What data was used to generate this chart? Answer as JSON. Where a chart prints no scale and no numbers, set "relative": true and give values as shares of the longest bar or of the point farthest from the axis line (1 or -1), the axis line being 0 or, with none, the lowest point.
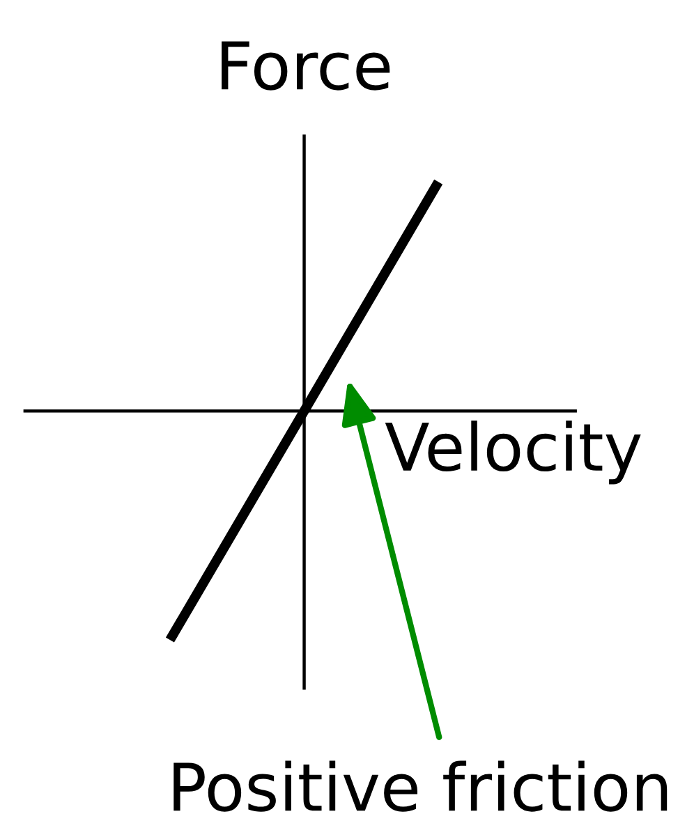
{
  "chart_data": {
    "type": "line",
    "relative": true,
    "xlabel": "Velocity",
    "ylabel": "Force",
    "categories": [
      null,
      null,
      null
    ],
    "series": [
      {
        "color": "#000000",
        "values": [
          -1,
          0,
          1
        ]
      }
    ],
    "annotations": [
      "Positive friction"
    ]
  }
}
